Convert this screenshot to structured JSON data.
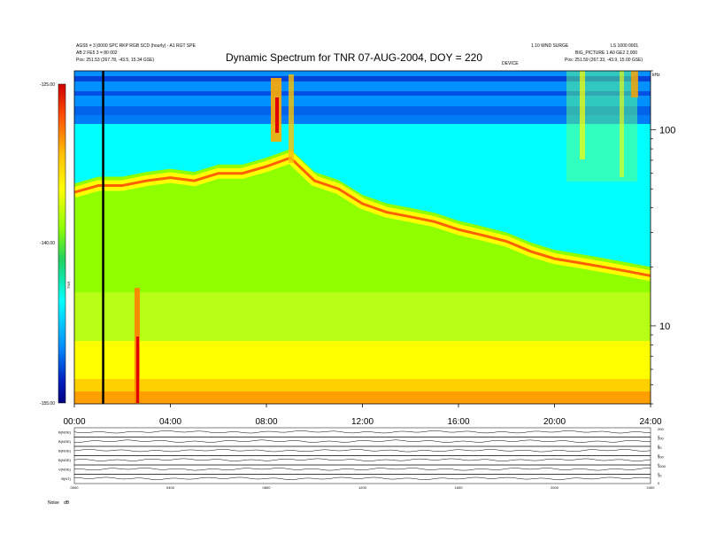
{
  "header": {
    "title": "Dynamic Spectrum for TNR 07-AUG-2004, DOY = 220",
    "left_line1": "AGS5 = 3 |0000 SPC RKP RGB SCD (hourly) - A1 RGT SPE",
    "left_line2": "AB 2 FE5 3 = 80 002",
    "left_pos": "Pos: 251.53 (267.78, -43.5, 15.34 GSE)",
    "right_line1": "1.10 WND SURGE",
    "right_line2": "LS 1000 0001",
    "right_line3": "BIG_PICTURE 1 A0 GE2 2,000",
    "right_pos": "Pos: 251.59 (267.33, -43.9, 15.00 GSE)",
    "center_small": "DEVICE"
  },
  "colorbar": {
    "ticks": [
      "-125.00",
      "-140.00",
      "-155.00"
    ],
    "label": "TNR",
    "stops": [
      "#d00000",
      "#ff6000",
      "#ffc000",
      "#ffff00",
      "#90ff00",
      "#20d060",
      "#00ffff",
      "#0090ff",
      "#0020c0",
      "#000080"
    ]
  },
  "footer": {
    "label": "Noise",
    "unit": "dB",
    "small_ticks": [
      "0000",
      "0400",
      "0800",
      "1200",
      "1600",
      "2000",
      "2400"
    ]
  },
  "chart_data": [
    {
      "type": "heatmap",
      "title": "Dynamic Spectrum for TNR 07-AUG-2004, DOY = 220",
      "x_ticks": [
        "00:00",
        "04:00",
        "08:00",
        "12:00",
        "16:00",
        "20:00",
        "24:00"
      ],
      "xlim": [
        0,
        24
      ],
      "y_scale": "log",
      "y_ticks": [
        10,
        100
      ],
      "y_unit": "kHz",
      "ylim": [
        4,
        200
      ],
      "z_range": [
        -155,
        -125
      ],
      "marker_line_hour": 1.2,
      "plasma_line": {
        "hour": [
          0,
          1,
          2,
          3,
          4,
          5,
          6,
          7,
          8,
          9,
          10,
          11,
          12,
          13,
          14,
          15,
          16,
          17,
          18,
          19,
          20,
          21,
          22,
          23,
          24
        ],
        "khz": [
          48,
          52,
          52,
          55,
          57,
          55,
          60,
          60,
          65,
          72,
          55,
          50,
          42,
          38,
          36,
          34,
          31,
          29,
          27,
          24,
          22,
          21,
          20,
          19,
          18
        ]
      }
    },
    {
      "type": "line",
      "series": [
        {
          "name": "B(NOE)",
          "ticks": [
            "200",
            "0"
          ]
        },
        {
          "name": "B(NOE)",
          "ticks": [
            "200",
            "0"
          ]
        },
        {
          "name": "B(NOE)",
          "ticks": [
            "50",
            "0"
          ]
        },
        {
          "name": "B(NOE)",
          "ticks": [
            "500",
            "0"
          ]
        },
        {
          "name": "V(NOE)",
          "ticks": [
            "1000",
            "0"
          ]
        },
        {
          "name": "B(NT)",
          "ticks": [
            "10",
            "0"
          ]
        }
      ]
    }
  ]
}
